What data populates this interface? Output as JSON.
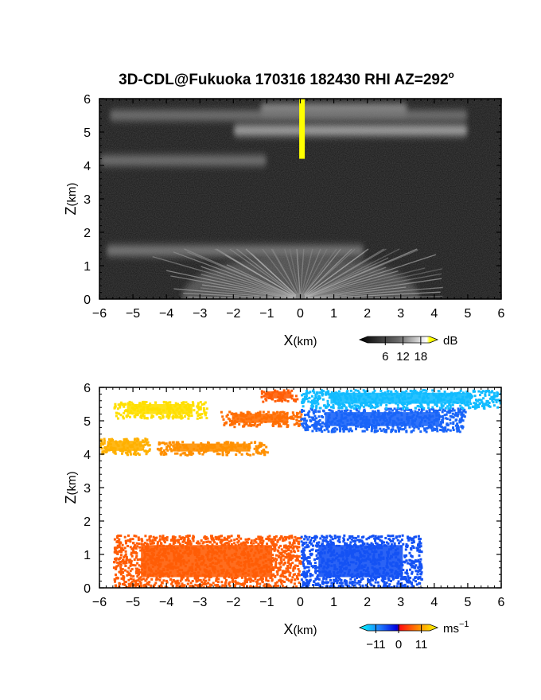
{
  "figure": {
    "title": "3D-CDL@Fukuoka 170316 182430 RHI AZ=292",
    "title_superscript": "o"
  },
  "chart_data": [
    {
      "type": "heatmap",
      "name": "reflectivity",
      "xlabel_main": "X",
      "xlabel_unit": "(km)",
      "ylabel_main": "Z",
      "ylabel_unit": "(km)",
      "xlim": [
        -6,
        6
      ],
      "ylim": [
        0,
        6
      ],
      "xticks": [
        "-6",
        "-5",
        "-4",
        "-3",
        "-2",
        "-1",
        "0",
        "1",
        "2",
        "3",
        "4",
        "5",
        "6"
      ],
      "yticks": [
        "0",
        "1",
        "2",
        "3",
        "4",
        "5",
        "6"
      ],
      "grid": false,
      "colorbar": {
        "unit": "dB",
        "unit_superscript": "",
        "ticks": [
          "6",
          "12",
          "18"
        ],
        "tick_values": [
          6,
          12,
          18
        ],
        "range": [
          0,
          21
        ],
        "colormap": "grayscale-with-yellow-top"
      },
      "layers": [
        {
          "z_km": 5.7,
          "x_range_km": [
            -1.2,
            3.2
          ],
          "intensity_dB": 12
        },
        {
          "z_km": 5.5,
          "x_range_km": [
            -5.7,
            5.0
          ],
          "intensity_dB": 9
        },
        {
          "z_km": 5.05,
          "x_range_km": [
            -2.0,
            5.0
          ],
          "intensity_dB": 15
        },
        {
          "z_km": 4.15,
          "x_range_km": [
            -6.0,
            -1.0
          ],
          "intensity_dB": 9
        },
        {
          "z_km": 1.45,
          "x_range_km": [
            -5.8,
            1.9
          ],
          "intensity_dB": 10
        }
      ],
      "highlight": {
        "x_km": 0.05,
        "z_range_km": [
          4.2,
          6.0
        ],
        "color": "#ffff00"
      }
    },
    {
      "type": "heatmap",
      "name": "doppler_velocity",
      "xlabel_main": "X",
      "xlabel_unit": "(km)",
      "ylabel_main": "Z",
      "ylabel_unit": "(km)",
      "xlim": [
        -6,
        6
      ],
      "ylim": [
        0,
        6
      ],
      "xticks": [
        "-6",
        "-5",
        "-4",
        "-3",
        "-2",
        "-1",
        "0",
        "1",
        "2",
        "3",
        "4",
        "5",
        "6"
      ],
      "yticks": [
        "0",
        "1",
        "2",
        "3",
        "4",
        "5",
        "6"
      ],
      "grid": false,
      "colorbar": {
        "unit": "ms",
        "unit_superscript": "−1",
        "ticks": [
          "−11",
          "0",
          "11"
        ],
        "tick_values": [
          -11,
          0,
          11
        ],
        "range": [
          -15,
          15
        ],
        "colormap": "cyan-blue-red-yellow"
      },
      "regions": [
        {
          "x_range_km": [
            -5.6,
            -2.8
          ],
          "z_range_km": [
            5.1,
            5.6
          ],
          "velocity_ms": 13
        },
        {
          "x_range_km": [
            -6.0,
            -4.5
          ],
          "z_range_km": [
            4.0,
            4.5
          ],
          "velocity_ms": 10
        },
        {
          "x_range_km": [
            -4.3,
            -1.0
          ],
          "z_range_km": [
            4.0,
            4.4
          ],
          "velocity_ms": 8
        },
        {
          "x_range_km": [
            -2.4,
            0.0
          ],
          "z_range_km": [
            4.85,
            5.3
          ],
          "velocity_ms": 6
        },
        {
          "x_range_km": [
            -1.2,
            -0.1
          ],
          "z_range_km": [
            5.6,
            5.95
          ],
          "velocity_ms": 5
        },
        {
          "x_range_km": [
            0.0,
            4.9
          ],
          "z_range_km": [
            4.7,
            5.4
          ],
          "velocity_ms": -6
        },
        {
          "x_range_km": [
            0.0,
            6.0
          ],
          "z_range_km": [
            5.4,
            5.95
          ],
          "velocity_ms": -11
        },
        {
          "x_range_km": [
            -5.6,
            0.0
          ],
          "z_range_km": [
            0.0,
            1.6
          ],
          "velocity_ms": 5
        },
        {
          "x_range_km": [
            0.0,
            3.6
          ],
          "z_range_km": [
            0.0,
            1.6
          ],
          "velocity_ms": -5
        }
      ]
    }
  ]
}
